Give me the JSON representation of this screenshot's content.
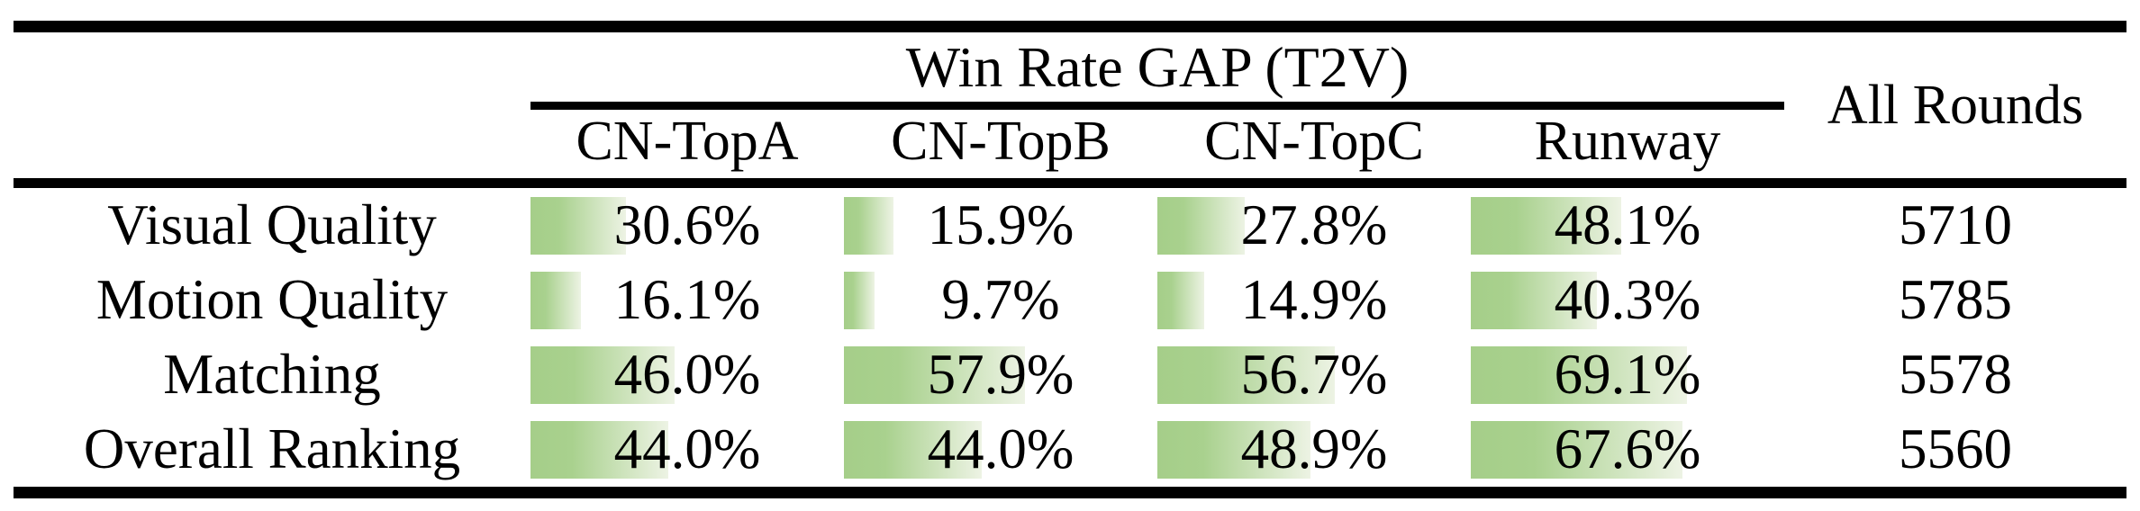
{
  "table": {
    "span_header": "Win Rate GAP (T2V)",
    "all_rounds_header": "All Rounds",
    "columns": [
      "CN-TopA",
      "CN-TopB",
      "CN-TopC",
      "Runway"
    ],
    "rows": [
      {
        "label": "Visual Quality",
        "cells": [
          {
            "text": "30.6%",
            "value": 30.6
          },
          {
            "text": "15.9%",
            "value": 15.9
          },
          {
            "text": "27.8%",
            "value": 27.8
          },
          {
            "text": "48.1%",
            "value": 48.1
          }
        ],
        "all_rounds": "5710"
      },
      {
        "label": "Motion Quality",
        "cells": [
          {
            "text": "16.1%",
            "value": 16.1
          },
          {
            "text": "9.7%",
            "value": 9.7
          },
          {
            "text": "14.9%",
            "value": 14.9
          },
          {
            "text": "40.3%",
            "value": 40.3
          }
        ],
        "all_rounds": "5785"
      },
      {
        "label": "Matching",
        "cells": [
          {
            "text": "46.0%",
            "value": 46.0
          },
          {
            "text": "57.9%",
            "value": 57.9
          },
          {
            "text": "56.7%",
            "value": 56.7
          },
          {
            "text": "69.1%",
            "value": 69.1
          }
        ],
        "all_rounds": "5578"
      },
      {
        "label": "Overall Ranking",
        "cells": [
          {
            "text": "44.0%",
            "value": 44.0
          },
          {
            "text": "44.0%",
            "value": 44.0
          },
          {
            "text": "48.9%",
            "value": 48.9
          },
          {
            "text": "67.6%",
            "value": 67.6
          }
        ],
        "all_rounds": "5560"
      }
    ]
  },
  "colors": {
    "bar_gradient_start": "#a5ce89",
    "bar_gradient_mid": "#a9d18e",
    "bar_gradient_end": "#edf3e4",
    "rule": "#000000",
    "text": "#000000",
    "background": "#ffffff"
  },
  "chart_data": {
    "type": "table",
    "title": "Win Rate GAP (T2V)",
    "categories": [
      "Visual Quality",
      "Motion Quality",
      "Matching",
      "Overall Ranking"
    ],
    "series": [
      {
        "name": "CN-TopA",
        "values": [
          30.6,
          16.1,
          46.0,
          44.0
        ]
      },
      {
        "name": "CN-TopB",
        "values": [
          15.9,
          9.7,
          57.9,
          44.0
        ]
      },
      {
        "name": "CN-TopC",
        "values": [
          27.8,
          14.9,
          56.7,
          48.9
        ]
      },
      {
        "name": "Runway",
        "values": [
          48.1,
          40.3,
          69.1,
          67.6
        ]
      }
    ],
    "all_rounds": [
      5710,
      5785,
      5578,
      5560
    ],
    "unit": "%",
    "bar_scale": [
      0,
      100
    ]
  }
}
